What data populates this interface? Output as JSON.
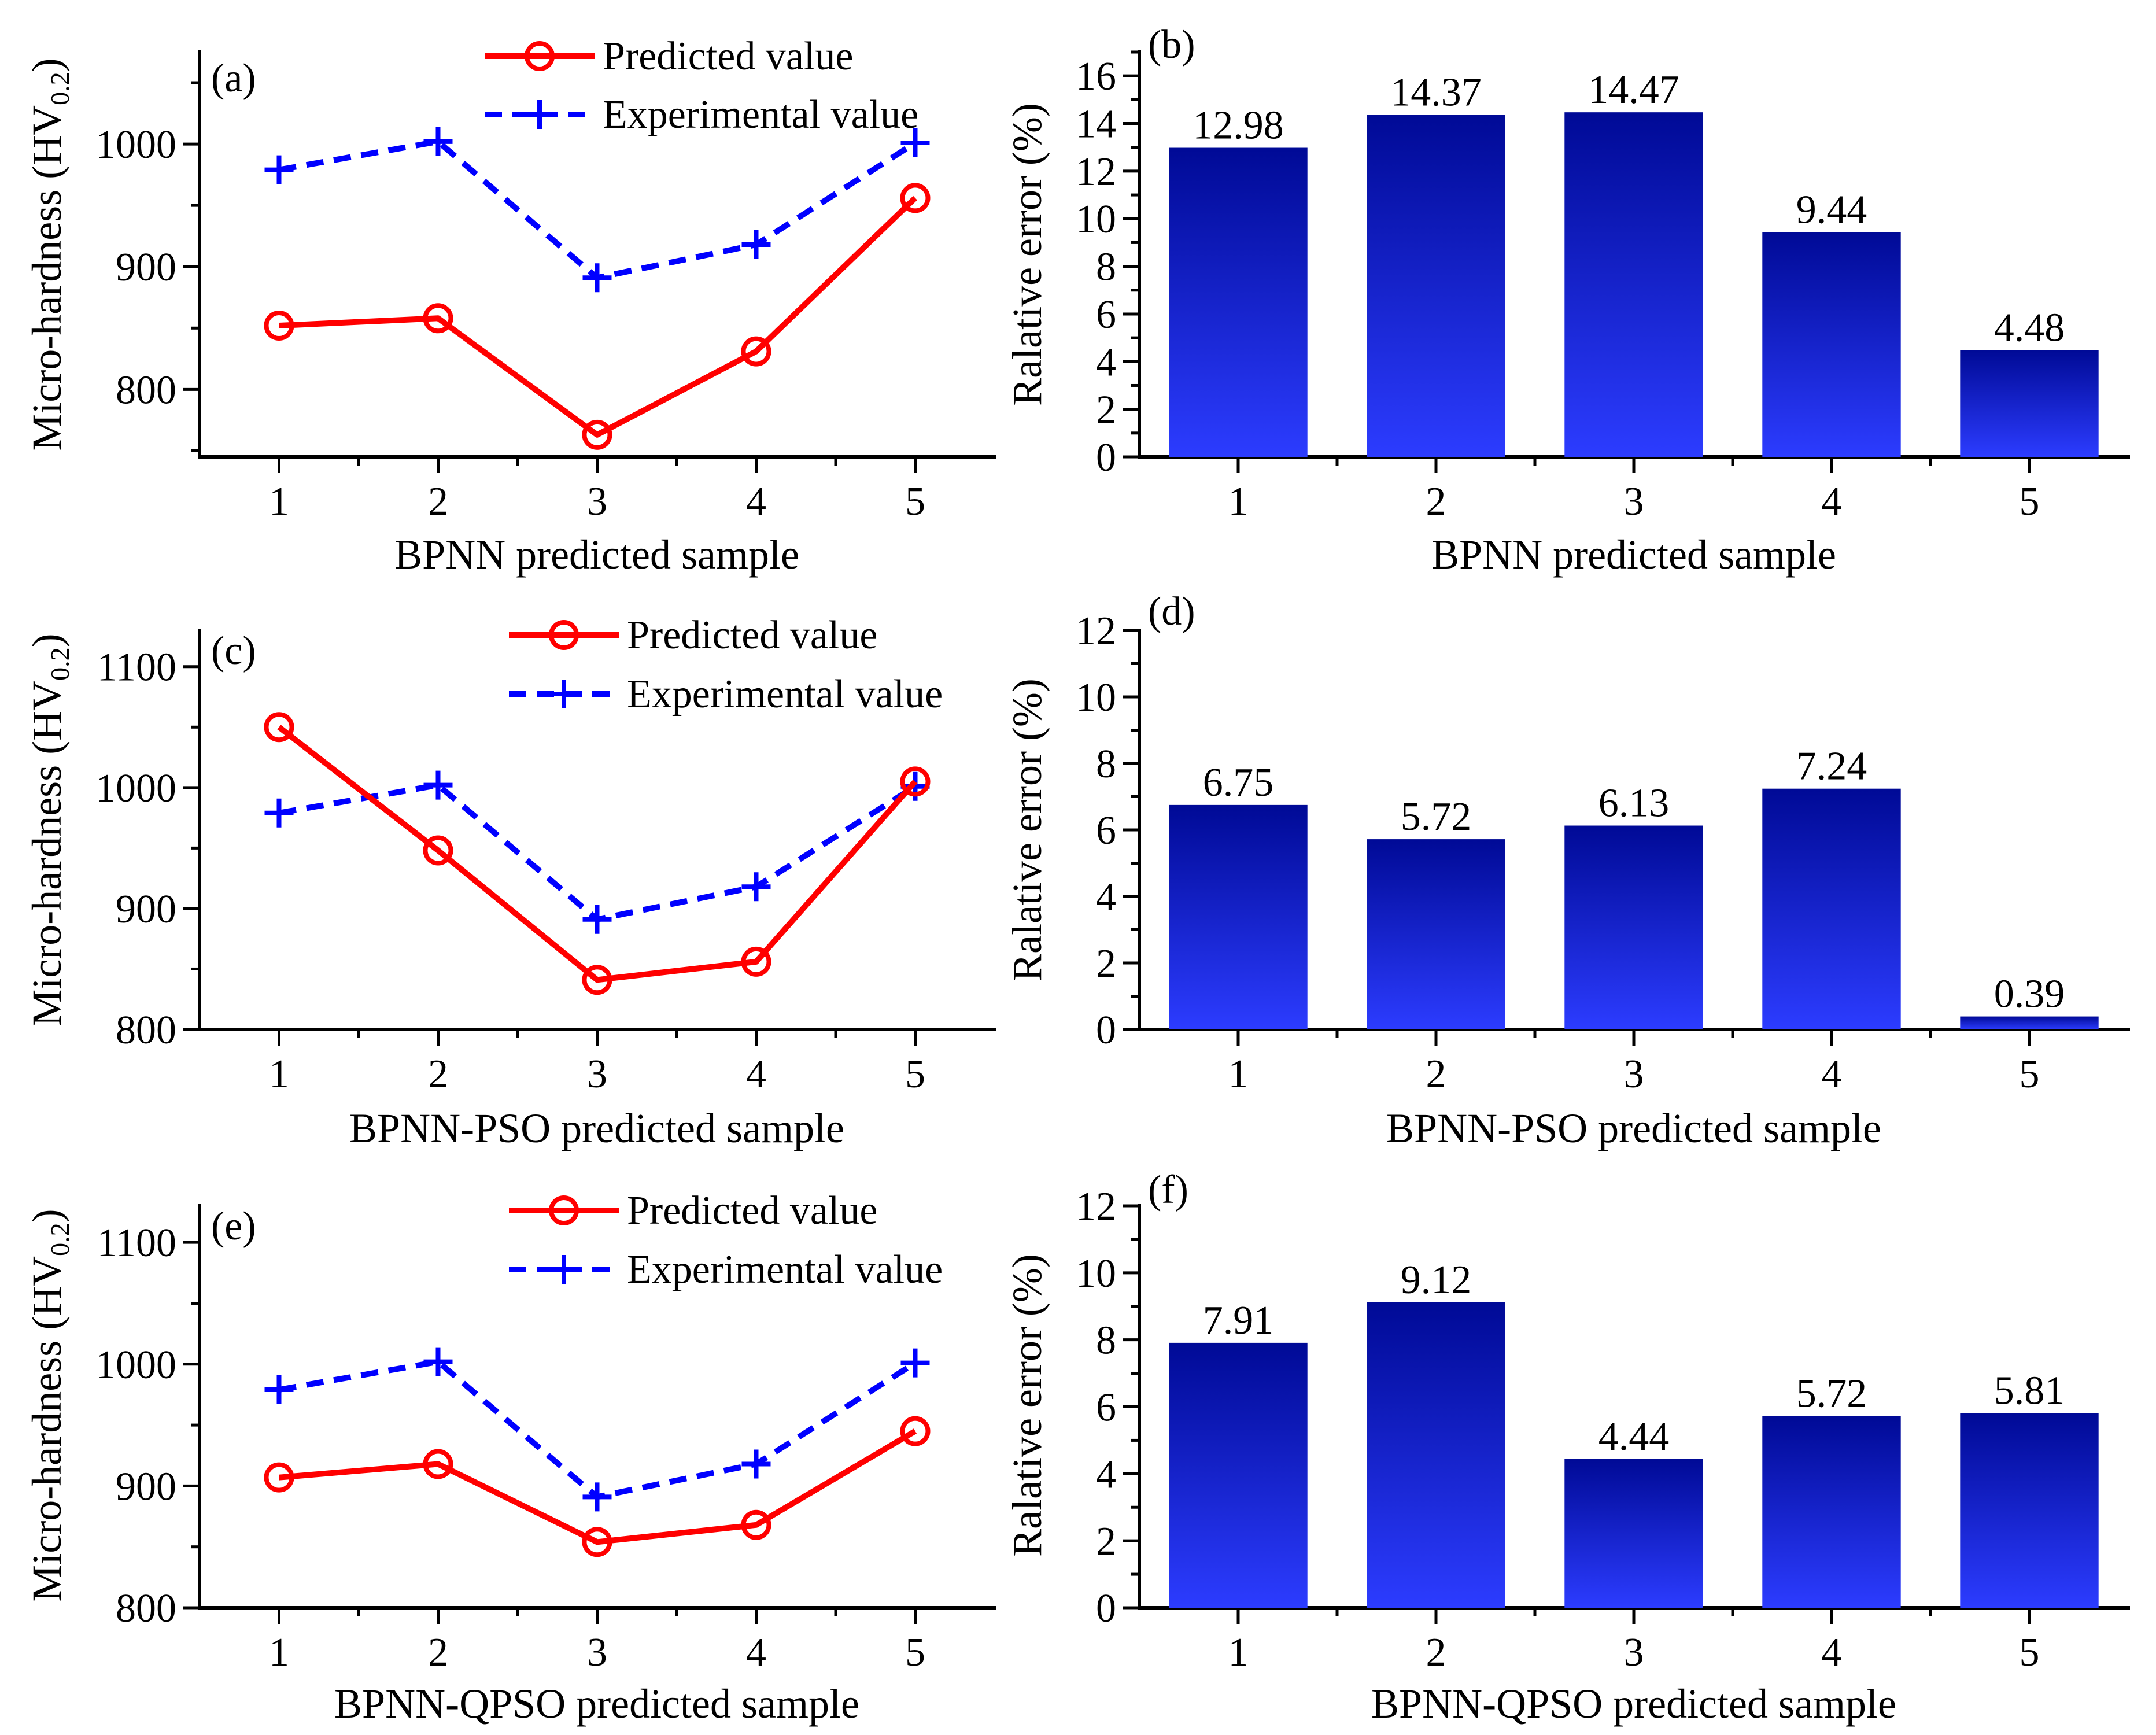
{
  "colors": {
    "predicted": "#ff0000",
    "experimental": "#0000ff",
    "bar_top": "#000a96",
    "bar_bottom": "#2c3cff",
    "axis": "#000000"
  },
  "legend": {
    "predicted": "Predicted value",
    "experimental": "Experimental value"
  },
  "chart_data": [
    {
      "id": "a",
      "type": "line",
      "panel_label": "(a)",
      "xlabel": "BPNN predicted sample",
      "ylabel": "Micro-hardness (HV",
      "ylabel_sub": "0.2",
      "ylabel_close": ")",
      "x": [
        1,
        2,
        3,
        4,
        5
      ],
      "xticks": [
        "1",
        "2",
        "3",
        "4",
        "5"
      ],
      "ylim": [
        745,
        1075
      ],
      "yticks": [
        800,
        900,
        1000
      ],
      "ytick_labels": [
        "800",
        "900",
        "1000"
      ],
      "legend_position": "top-center",
      "series": [
        {
          "name": "Predicted value",
          "values": [
            852,
            858,
            763,
            831,
            956
          ]
        },
        {
          "name": "Experimental value",
          "values": [
            979,
            1002,
            891,
            918,
            1001
          ]
        }
      ]
    },
    {
      "id": "b",
      "type": "bar",
      "panel_label": "(b)",
      "xlabel": "BPNN predicted sample",
      "ylabel": "Ralative error (%)",
      "categories": [
        "1",
        "2",
        "3",
        "4",
        "5"
      ],
      "values": [
        12.98,
        14.37,
        14.47,
        9.44,
        4.48
      ],
      "value_labels": [
        "12.98",
        "14.37",
        "14.47",
        "9.44",
        "4.48"
      ],
      "ylim": [
        0,
        17
      ],
      "yticks": [
        0,
        2,
        4,
        6,
        8,
        10,
        12,
        14,
        16
      ],
      "ytick_labels": [
        "0",
        "2",
        "4",
        "6",
        "8",
        "10",
        "12",
        "14",
        "16"
      ]
    },
    {
      "id": "c",
      "type": "line",
      "panel_label": "(c)",
      "xlabel": "BPNN-PSO predicted sample",
      "ylabel": "Micro-hardness (HV",
      "ylabel_sub": "0.2",
      "ylabel_close": ")",
      "x": [
        1,
        2,
        3,
        4,
        5
      ],
      "xticks": [
        "1",
        "2",
        "3",
        "4",
        "5"
      ],
      "ylim": [
        800,
        1130
      ],
      "yticks": [
        800,
        900,
        1000,
        1100
      ],
      "ytick_labels": [
        "800",
        "900",
        "1000",
        "1100"
      ],
      "legend_position": "top-center",
      "series": [
        {
          "name": "Predicted value",
          "values": [
            1050,
            948,
            841,
            856,
            1005
          ]
        },
        {
          "name": "Experimental value",
          "values": [
            979,
            1002,
            891,
            918,
            1001
          ]
        }
      ]
    },
    {
      "id": "d",
      "type": "bar",
      "panel_label": "(d)",
      "xlabel": "BPNN-PSO predicted sample",
      "ylabel": "Ralative error (%)",
      "categories": [
        "1",
        "2",
        "3",
        "4",
        "5"
      ],
      "values": [
        6.75,
        5.72,
        6.13,
        7.24,
        0.39
      ],
      "value_labels": [
        "6.75",
        "5.72",
        "6.13",
        "7.24",
        "0.39"
      ],
      "ylim": [
        0,
        12
      ],
      "yticks": [
        0,
        2,
        4,
        6,
        8,
        10,
        12
      ],
      "ytick_labels": [
        "0",
        "2",
        "4",
        "6",
        "8",
        "10",
        "12"
      ]
    },
    {
      "id": "e",
      "type": "line",
      "panel_label": "(e)",
      "xlabel": "BPNN-QPSO predicted sample",
      "ylabel": "Micro-hardness (HV",
      "ylabel_sub": "0.2",
      "ylabel_close": ")",
      "x": [
        1,
        2,
        3,
        4,
        5
      ],
      "xticks": [
        "1",
        "2",
        "3",
        "4",
        "5"
      ],
      "ylim": [
        800,
        1130
      ],
      "yticks": [
        800,
        900,
        1000,
        1100
      ],
      "ytick_labels": [
        "800",
        "900",
        "1000",
        "1100"
      ],
      "legend_position": "top-center",
      "series": [
        {
          "name": "Predicted value",
          "values": [
            907,
            918,
            854,
            868,
            945
          ]
        },
        {
          "name": "Experimental value",
          "values": [
            979,
            1002,
            891,
            918,
            1001
          ]
        }
      ]
    },
    {
      "id": "f",
      "type": "bar",
      "panel_label": "(f)",
      "xlabel": "BPNN-QPSO predicted sample",
      "ylabel": "Ralative error (%)",
      "categories": [
        "1",
        "2",
        "3",
        "4",
        "5"
      ],
      "values": [
        7.91,
        9.12,
        4.44,
        5.72,
        5.81
      ],
      "value_labels": [
        "7.91",
        "9.12",
        "4.44",
        "5.72",
        "5.81"
      ],
      "ylim": [
        0,
        12
      ],
      "yticks": [
        0,
        2,
        4,
        6,
        8,
        10,
        12
      ],
      "ytick_labels": [
        "0",
        "2",
        "4",
        "6",
        "8",
        "10",
        "12"
      ]
    }
  ]
}
